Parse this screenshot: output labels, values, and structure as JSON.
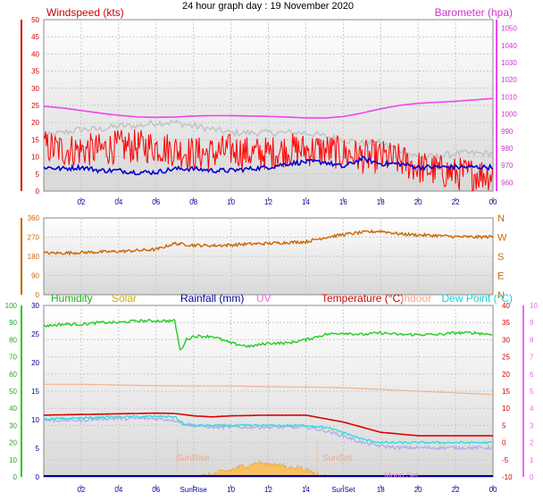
{
  "title": "24 hour graph day : 19 November 2020",
  "colors": {
    "windspeed": "#ff0000",
    "gust": "#c0c0c0",
    "avg_wind": "#0000cc",
    "barometer": "#ee44ee",
    "direction": "#cc6600",
    "humidity": "#22cc22",
    "solar": "#ccaa00",
    "rainfall": "#000099",
    "uv": "#ee66ee",
    "temperature": "#dd0000",
    "indoor": "#f4b090",
    "dewpoint": "#33dddd",
    "windchill": "#aaaaee"
  },
  "chart_data": [
    {
      "type": "line",
      "panel": "wind",
      "title": "Windspeed (kts)",
      "right_axis_title": "Barometer (hpa)",
      "x_ticks": [
        "02",
        "04",
        "06",
        "08",
        "10",
        "12",
        "14",
        "16",
        "18",
        "20",
        "22",
        "00"
      ],
      "ylim": [
        0,
        50
      ],
      "y_ticks": [
        "0",
        "5",
        "10",
        "15",
        "20",
        "25",
        "30",
        "35",
        "40",
        "45",
        "50"
      ],
      "y_ticks_right": [
        "960",
        "970",
        "980",
        "990",
        "1000",
        "1010",
        "1020",
        "1030",
        "1040",
        "1050"
      ],
      "y2lim": [
        955,
        1055
      ],
      "grid": true,
      "series": [
        {
          "key": "windspeed",
          "x": [
            0,
            1,
            2,
            3,
            4,
            5,
            6,
            7,
            8,
            9,
            10,
            11,
            12,
            13,
            14,
            15,
            16,
            17,
            18,
            19,
            20,
            21,
            22,
            23,
            24
          ],
          "values": [
            13,
            12,
            12,
            12,
            13,
            13,
            13,
            12,
            11,
            11,
            12,
            11,
            11,
            12,
            12,
            12,
            11,
            10,
            10,
            9,
            7,
            6,
            5,
            5,
            5
          ],
          "noise": 5
        },
        {
          "key": "gust",
          "x": [
            0,
            1,
            2,
            3,
            4,
            5,
            6,
            7,
            8,
            9,
            10,
            11,
            12,
            13,
            14,
            15,
            16,
            17,
            18,
            19,
            20,
            21,
            22,
            23,
            24
          ],
          "values": [
            16,
            17,
            18,
            18,
            19,
            19,
            20,
            20,
            19,
            18,
            17,
            17,
            17,
            17,
            17,
            16,
            15,
            14,
            14,
            12,
            10,
            10,
            11,
            11,
            11
          ],
          "noise": 1
        },
        {
          "key": "avg_wind",
          "x": [
            0,
            1,
            2,
            3,
            4,
            5,
            6,
            7,
            8,
            9,
            10,
            11,
            12,
            13,
            14,
            15,
            16,
            17,
            18,
            19,
            20,
            21,
            22,
            23,
            24
          ],
          "values": [
            7,
            6.5,
            7,
            6,
            6,
            5.5,
            5.5,
            6.5,
            6.5,
            6,
            6,
            6.5,
            7,
            8,
            8.5,
            8.5,
            7,
            9.5,
            8,
            8,
            7,
            7,
            7,
            7,
            7
          ],
          "noise": 0.7
        },
        {
          "key": "barometer",
          "axis": "right",
          "x": [
            0,
            1,
            2,
            3,
            4,
            5,
            6,
            7,
            8,
            9,
            10,
            11,
            12,
            13,
            14,
            15,
            16,
            17,
            18,
            19,
            20,
            21,
            22,
            23,
            24
          ],
          "values": [
            1004.5,
            1003.5,
            1002,
            1000.5,
            999.2,
            998.3,
            998,
            998.2,
            998.8,
            999,
            999,
            998.8,
            998.6,
            998.2,
            997.7,
            997.6,
            998.5,
            1000.5,
            1003,
            1005,
            1006.2,
            1006.8,
            1007.4,
            1008.2,
            1009
          ],
          "noise": 0
        }
      ]
    },
    {
      "type": "line",
      "panel": "direction",
      "x_ticks": [],
      "ylim": [
        0,
        360
      ],
      "y_ticks": [
        "0",
        "90",
        "180",
        "270",
        "360"
      ],
      "y_ticks_right": [
        "N",
        "E",
        "S",
        "W",
        "N"
      ],
      "grid": true,
      "series": [
        {
          "key": "direction",
          "x": [
            0,
            1,
            2,
            3,
            4,
            5,
            6,
            7,
            8,
            9,
            10,
            11,
            12,
            13,
            14,
            15,
            16,
            17,
            18,
            19,
            20,
            21,
            22,
            23,
            24
          ],
          "values": [
            195,
            195,
            198,
            200,
            203,
            207,
            212,
            240,
            232,
            230,
            233,
            238,
            240,
            245,
            248,
            268,
            282,
            292,
            298,
            285,
            280,
            277,
            272,
            270,
            272
          ],
          "noise": 7
        }
      ]
    },
    {
      "type": "line",
      "panel": "temperature",
      "labels": [
        "Humidity",
        "Solar",
        "Rainfall (mm)",
        "UV",
        "Temperature (°C)",
        "Indoor",
        "Dew Point (°C)"
      ],
      "x_ticks": [
        "02",
        "04",
        "06",
        "SunRise",
        "10",
        "12",
        "14",
        "SunSet",
        "18",
        "20",
        "22",
        "00"
      ],
      "ylim": [
        0,
        100
      ],
      "y_ticks": [
        "0",
        "10",
        "20",
        "30",
        "40",
        "50",
        "60",
        "70",
        "80",
        "90",
        "100"
      ],
      "y_ticks_mid": [
        "0",
        "5",
        "10",
        "15",
        "20",
        "25",
        "30"
      ],
      "y_ticks_temp": [
        "-10",
        "-5",
        "0",
        "5",
        "10",
        "15",
        "20",
        "25",
        "30",
        "35",
        "40"
      ],
      "y_ticks_uv": [
        "0",
        "1",
        "2",
        "3",
        "4",
        "5",
        "6",
        "7",
        "8",
        "9",
        "10"
      ],
      "annotations": [
        "SunRise",
        "SunSet",
        "Moon Set"
      ],
      "grid": true,
      "series": [
        {
          "key": "humidity",
          "scale": "pct",
          "x": [
            0,
            1,
            2,
            3,
            4,
            5,
            6,
            7,
            7.3,
            7.6,
            8,
            9,
            10,
            11,
            12,
            13,
            14,
            15,
            16,
            17,
            18,
            19,
            20,
            21,
            22,
            23,
            24
          ],
          "values": [
            88,
            89,
            89,
            90,
            90,
            91,
            91,
            91,
            73,
            80,
            82,
            82,
            78,
            76,
            78,
            78,
            80,
            83,
            84,
            83,
            84,
            83,
            83,
            83,
            84,
            84,
            83
          ],
          "noise": 0.8
        },
        {
          "key": "indoor",
          "scale": "temp",
          "x": [
            0,
            2,
            4,
            6,
            8,
            10,
            12,
            14,
            16,
            18,
            20,
            22,
            24
          ],
          "values": [
            17,
            17,
            16.8,
            16.6,
            16.5,
            16.5,
            16.3,
            16.2,
            16,
            15.5,
            15,
            14.5,
            14
          ],
          "noise": 0
        },
        {
          "key": "temperature",
          "scale": "temp",
          "x": [
            0,
            2,
            4,
            6,
            7,
            8,
            9,
            10,
            12,
            14,
            15,
            16,
            17,
            18,
            19,
            20,
            22,
            24
          ],
          "values": [
            8,
            8.2,
            8.4,
            8.6,
            8.5,
            7.8,
            7.5,
            7.8,
            8,
            8,
            7,
            6,
            4.5,
            3,
            2.5,
            2,
            2,
            2
          ],
          "noise": 0
        },
        {
          "key": "windchill",
          "scale": "temp",
          "x": [
            0,
            1,
            2,
            3,
            4,
            5,
            6,
            7,
            8,
            9,
            10,
            11,
            12,
            13,
            14,
            15,
            16,
            17,
            18,
            19,
            20,
            21,
            22,
            23,
            24
          ],
          "values": [
            6.5,
            6.5,
            6.5,
            7,
            7,
            7,
            7,
            6.5,
            5,
            4.5,
            4.5,
            4.5,
            4.5,
            4.5,
            4.5,
            3.5,
            2,
            0,
            -1,
            -1.5,
            -1.5,
            -1.5,
            -1.5,
            -1.5,
            -1.5
          ],
          "noise": 0.5
        },
        {
          "key": "dewpoint",
          "scale": "temp",
          "x": [
            0,
            1,
            2,
            3,
            4,
            5,
            6,
            7,
            7.5,
            8,
            9,
            10,
            11,
            12,
            13,
            14,
            15,
            16,
            17,
            18,
            19,
            20,
            21,
            22,
            23,
            24
          ],
          "values": [
            6.8,
            7,
            7.2,
            7.4,
            7.5,
            7.6,
            7.6,
            7.6,
            5,
            5,
            5,
            5,
            5,
            5,
            5,
            5,
            4.5,
            3,
            1,
            0,
            0,
            0,
            0,
            0,
            0,
            0
          ],
          "noise": 0.3
        },
        {
          "key": "solar",
          "scale": "pct",
          "x": [
            8,
            8.5,
            9,
            9.5,
            10,
            10.5,
            11,
            11.5,
            12,
            12.5,
            13,
            13.5,
            14,
            14.5,
            15,
            15.3
          ],
          "values": [
            0,
            0.5,
            1.5,
            3,
            4,
            6,
            7,
            8.5,
            7,
            8,
            5,
            6,
            4,
            2,
            0.5,
            0
          ],
          "noise": 1.5
        },
        {
          "key": "rainfall",
          "scale": "mid",
          "x": [
            0,
            24
          ],
          "values": [
            0,
            0
          ],
          "noise": 0
        }
      ]
    }
  ]
}
